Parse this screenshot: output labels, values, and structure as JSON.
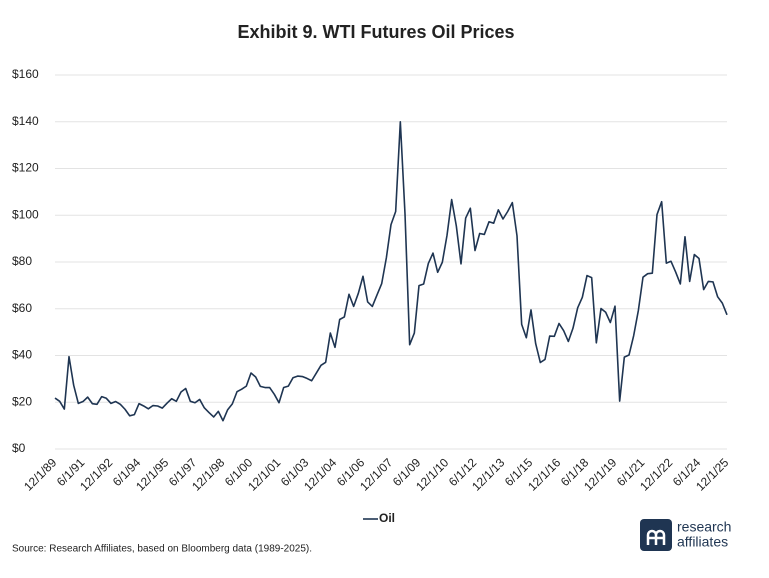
{
  "chart_data": {
    "type": "line",
    "title": "Exhibit 9. WTI Futures Oil Prices",
    "source": "Source: Research Affiliates, based on Bloomberg data (1989-2025).",
    "categories": [
      "12/1/89",
      null,
      null,
      null,
      null,
      null,
      "6/1/91",
      null,
      null,
      null,
      null,
      null,
      "12/1/92",
      null,
      null,
      null,
      null,
      null,
      "6/1/94",
      null,
      null,
      null,
      null,
      null,
      "12/1/95",
      null,
      null,
      null,
      null,
      null,
      "6/1/97",
      null,
      null,
      null,
      null,
      null,
      "12/1/98",
      null,
      null,
      null,
      null,
      null,
      "6/1/00",
      null,
      null,
      null,
      null,
      null,
      "12/1/01",
      null,
      null,
      null,
      null,
      null,
      "6/1/03",
      null,
      null,
      null,
      null,
      null,
      "12/1/04",
      null,
      null,
      null,
      null,
      null,
      "6/1/06",
      null,
      null,
      null,
      null,
      null,
      "12/1/07",
      null,
      null,
      null,
      null,
      null,
      "6/1/09",
      null,
      null,
      null,
      null,
      null,
      "12/1/10",
      null,
      null,
      null,
      null,
      null,
      "6/1/12",
      null,
      null,
      null,
      null,
      null,
      "12/1/13",
      null,
      null,
      null,
      null,
      null,
      "6/1/15",
      null,
      null,
      null,
      null,
      null,
      "12/1/16",
      null,
      null,
      null,
      null,
      null,
      "6/1/18",
      null,
      null,
      null,
      null,
      null,
      "12/1/19",
      null,
      null,
      null,
      null,
      null,
      "6/1/21",
      null,
      null,
      null,
      null,
      null,
      "12/1/22",
      null,
      null,
      null,
      null,
      null,
      "6/1/24",
      null,
      null,
      null,
      null,
      null,
      "12/1/25"
    ],
    "series": [
      {
        "name": "Oil",
        "color": "#1f3552",
        "values": [
          21.8,
          20.4,
          17.1,
          39.5,
          27.3,
          19.5,
          20.3,
          22.2,
          19.4,
          19.1,
          22.4,
          21.7,
          19.5,
          20.3,
          19.1,
          17.0,
          14.2,
          14.7,
          19.4,
          18.4,
          17.2,
          18.6,
          18.4,
          17.5,
          19.6,
          21.5,
          20.4,
          24.4,
          25.9,
          20.4,
          19.8,
          21.2,
          17.6,
          15.6,
          13.7,
          16.1,
          12.1,
          16.8,
          19.3,
          24.5,
          25.6,
          26.9,
          32.5,
          30.8,
          26.8,
          26.3,
          26.3,
          23.4,
          19.8,
          26.3,
          26.9,
          30.5,
          31.2,
          31.0,
          30.2,
          29.2,
          32.5,
          35.8,
          37.1,
          49.6,
          43.5,
          55.4,
          56.5,
          66.2,
          61.0,
          66.6,
          73.9,
          62.9,
          61.0,
          65.9,
          70.7,
          81.7,
          96.0,
          101.6,
          140.0,
          100.6,
          44.6,
          49.6,
          69.9,
          70.6,
          79.4,
          83.8,
          75.6,
          79.9,
          91.4,
          106.7,
          95.4,
          79.2,
          98.8,
          103.0,
          84.9,
          92.2,
          91.8,
          97.2,
          96.6,
          102.3,
          98.4,
          101.6,
          105.4,
          91.2,
          53.3,
          47.6,
          59.5,
          45.1,
          37.0,
          38.3,
          48.3,
          48.2,
          53.7,
          50.6,
          46.0,
          51.7,
          60.4,
          64.9,
          74.2,
          73.3,
          45.4,
          60.1,
          58.5,
          54.1,
          61.1,
          20.5,
          39.3,
          40.2,
          48.5,
          59.2,
          73.5,
          75.0,
          75.2,
          100.3,
          105.8,
          79.5,
          80.3,
          75.7,
          70.6,
          90.8,
          71.7,
          83.2,
          81.5,
          68.2,
          71.7,
          71.5,
          65.1,
          62.4,
          57.4
        ]
      }
    ],
    "ylim": [
      0,
      160
    ],
    "yticks": [
      {
        "value": 0,
        "label": "$0"
      },
      {
        "value": 20,
        "label": "$20"
      },
      {
        "value": 40,
        "label": "$40"
      },
      {
        "value": 60,
        "label": "$60"
      },
      {
        "value": 80,
        "label": "$80"
      },
      {
        "value": 100,
        "label": "$100"
      },
      {
        "value": 120,
        "label": "$120"
      },
      {
        "value": 140,
        "label": "$140"
      },
      {
        "value": 160,
        "label": "$160"
      }
    ],
    "grid": true
  },
  "logo": {
    "line1": "research",
    "line2": "affiliates"
  }
}
